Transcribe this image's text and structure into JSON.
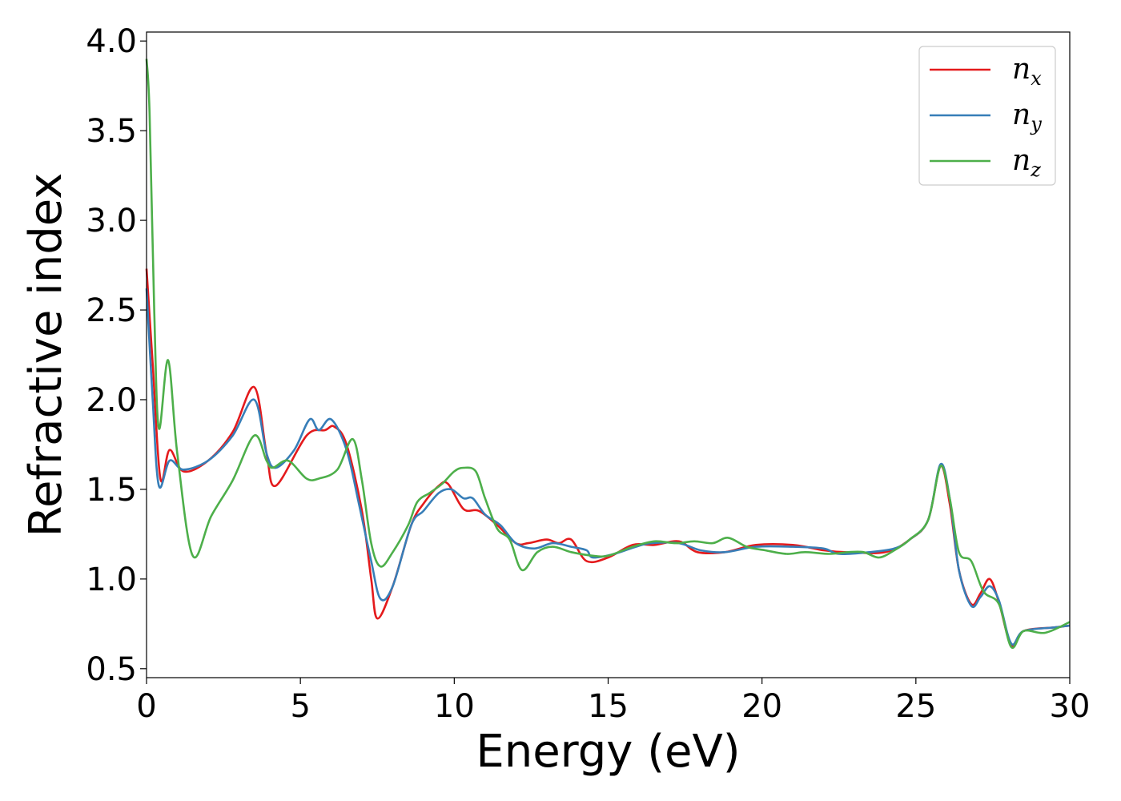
{
  "chart_data": {
    "type": "line",
    "title": "",
    "xlabel": "Energy (eV)",
    "ylabel": "Refractive index",
    "xlim": [
      0,
      30
    ],
    "ylim": [
      0.45,
      4.05
    ],
    "xticks": [
      0,
      5,
      10,
      15,
      20,
      25,
      30
    ],
    "yticks": [
      0.5,
      1.0,
      1.5,
      2.0,
      2.5,
      3.0,
      3.5,
      4.0
    ],
    "xtick_labels": [
      "0",
      "5",
      "10",
      "15",
      "20",
      "25",
      "30"
    ],
    "ytick_labels": [
      "0.5",
      "1.0",
      "1.5",
      "2.0",
      "2.5",
      "3.0",
      "3.5",
      "4.0"
    ],
    "grid": false,
    "legend_position": "top-right",
    "series": [
      {
        "name": "n_x",
        "legend_main": "n",
        "legend_sub": "x",
        "color": "#e41a1c",
        "points": [
          [
            0,
            2.73
          ],
          [
            0.2,
            2.2
          ],
          [
            0.45,
            1.56
          ],
          [
            0.75,
            1.72
          ],
          [
            1.2,
            1.6
          ],
          [
            2,
            1.66
          ],
          [
            2.8,
            1.82
          ],
          [
            3.5,
            2.07
          ],
          [
            3.9,
            1.7
          ],
          [
            4.2,
            1.52
          ],
          [
            5.2,
            1.8
          ],
          [
            5.8,
            1.83
          ],
          [
            6.1,
            1.85
          ],
          [
            6.5,
            1.75
          ],
          [
            7,
            1.38
          ],
          [
            7.3,
            1.0
          ],
          [
            7.5,
            0.78
          ],
          [
            8,
            0.96
          ],
          [
            8.6,
            1.3
          ],
          [
            9,
            1.42
          ],
          [
            9.5,
            1.52
          ],
          [
            9.8,
            1.53
          ],
          [
            10.3,
            1.39
          ],
          [
            10.8,
            1.38
          ],
          [
            11.4,
            1.3
          ],
          [
            12,
            1.2
          ],
          [
            12.4,
            1.2
          ],
          [
            13,
            1.22
          ],
          [
            13.4,
            1.2
          ],
          [
            13.8,
            1.22
          ],
          [
            14.3,
            1.1
          ],
          [
            15,
            1.12
          ],
          [
            15.8,
            1.19
          ],
          [
            16.5,
            1.19
          ],
          [
            17.3,
            1.21
          ],
          [
            17.9,
            1.15
          ],
          [
            18.8,
            1.15
          ],
          [
            19.8,
            1.19
          ],
          [
            21,
            1.19
          ],
          [
            22,
            1.16
          ],
          [
            22.7,
            1.15
          ],
          [
            24,
            1.15
          ],
          [
            24.8,
            1.22
          ],
          [
            25.4,
            1.33
          ],
          [
            25.8,
            1.63
          ],
          [
            26.1,
            1.42
          ],
          [
            26.4,
            1.05
          ],
          [
            26.8,
            0.86
          ],
          [
            27.1,
            0.92
          ],
          [
            27.4,
            1.0
          ],
          [
            27.7,
            0.87
          ],
          [
            28.1,
            0.63
          ],
          [
            28.5,
            0.71
          ],
          [
            29.5,
            0.73
          ],
          [
            30,
            0.74
          ]
        ]
      },
      {
        "name": "n_y",
        "legend_main": "n",
        "legend_sub": "y",
        "color": "#377eb8",
        "points": [
          [
            0,
            2.62
          ],
          [
            0.2,
            2.0
          ],
          [
            0.4,
            1.52
          ],
          [
            0.75,
            1.66
          ],
          [
            1.2,
            1.61
          ],
          [
            2,
            1.66
          ],
          [
            2.8,
            1.8
          ],
          [
            3.5,
            2.0
          ],
          [
            3.9,
            1.7
          ],
          [
            4.2,
            1.62
          ],
          [
            4.8,
            1.72
          ],
          [
            5.3,
            1.89
          ],
          [
            5.6,
            1.83
          ],
          [
            6,
            1.89
          ],
          [
            6.5,
            1.72
          ],
          [
            6.9,
            1.42
          ],
          [
            7.3,
            1.1
          ],
          [
            7.6,
            0.89
          ],
          [
            8,
            0.96
          ],
          [
            8.6,
            1.3
          ],
          [
            9,
            1.38
          ],
          [
            9.5,
            1.48
          ],
          [
            9.9,
            1.5
          ],
          [
            10.3,
            1.45
          ],
          [
            10.6,
            1.45
          ],
          [
            11,
            1.36
          ],
          [
            11.5,
            1.3
          ],
          [
            12,
            1.2
          ],
          [
            12.6,
            1.17
          ],
          [
            13.2,
            1.2
          ],
          [
            13.8,
            1.18
          ],
          [
            14.3,
            1.16
          ],
          [
            14.5,
            1.12
          ],
          [
            15.2,
            1.14
          ],
          [
            15.9,
            1.18
          ],
          [
            16.4,
            1.2
          ],
          [
            17.3,
            1.2
          ],
          [
            18,
            1.16
          ],
          [
            18.8,
            1.15
          ],
          [
            19.8,
            1.18
          ],
          [
            21,
            1.18
          ],
          [
            22,
            1.17
          ],
          [
            22.5,
            1.14
          ],
          [
            23.5,
            1.15
          ],
          [
            24.3,
            1.17
          ],
          [
            24.8,
            1.22
          ],
          [
            25.4,
            1.33
          ],
          [
            25.8,
            1.64
          ],
          [
            26.1,
            1.45
          ],
          [
            26.4,
            1.05
          ],
          [
            26.8,
            0.85
          ],
          [
            27.1,
            0.9
          ],
          [
            27.4,
            0.96
          ],
          [
            27.7,
            0.88
          ],
          [
            28.1,
            0.64
          ],
          [
            28.5,
            0.71
          ],
          [
            29.5,
            0.73
          ],
          [
            30,
            0.74
          ]
        ]
      },
      {
        "name": "n_z",
        "legend_main": "n",
        "legend_sub": "z",
        "color": "#4daf4a",
        "points": [
          [
            0,
            3.9
          ],
          [
            0.1,
            3.6
          ],
          [
            0.25,
            2.5
          ],
          [
            0.4,
            1.84
          ],
          [
            0.7,
            2.22
          ],
          [
            1,
            1.7
          ],
          [
            1.5,
            1.13
          ],
          [
            2.1,
            1.35
          ],
          [
            2.8,
            1.55
          ],
          [
            3.5,
            1.8
          ],
          [
            3.9,
            1.66
          ],
          [
            4.1,
            1.62
          ],
          [
            4.6,
            1.66
          ],
          [
            5.2,
            1.56
          ],
          [
            5.6,
            1.56
          ],
          [
            6.2,
            1.61
          ],
          [
            6.7,
            1.78
          ],
          [
            7,
            1.55
          ],
          [
            7.3,
            1.2
          ],
          [
            7.6,
            1.07
          ],
          [
            8,
            1.15
          ],
          [
            8.5,
            1.3
          ],
          [
            8.8,
            1.43
          ],
          [
            9.2,
            1.48
          ],
          [
            9.6,
            1.53
          ],
          [
            10,
            1.6
          ],
          [
            10.3,
            1.62
          ],
          [
            10.7,
            1.6
          ],
          [
            11,
            1.45
          ],
          [
            11.4,
            1.28
          ],
          [
            11.8,
            1.22
          ],
          [
            12.2,
            1.05
          ],
          [
            12.7,
            1.15
          ],
          [
            13.2,
            1.18
          ],
          [
            13.8,
            1.15
          ],
          [
            14.5,
            1.13
          ],
          [
            15,
            1.13
          ],
          [
            15.8,
            1.18
          ],
          [
            16.5,
            1.21
          ],
          [
            17.2,
            1.2
          ],
          [
            17.8,
            1.21
          ],
          [
            18.4,
            1.2
          ],
          [
            18.9,
            1.23
          ],
          [
            19.5,
            1.18
          ],
          [
            20.1,
            1.16
          ],
          [
            20.8,
            1.14
          ],
          [
            21.4,
            1.15
          ],
          [
            22.2,
            1.14
          ],
          [
            22.8,
            1.15
          ],
          [
            23.3,
            1.15
          ],
          [
            23.8,
            1.12
          ],
          [
            24.3,
            1.16
          ],
          [
            24.8,
            1.22
          ],
          [
            25.4,
            1.33
          ],
          [
            25.8,
            1.63
          ],
          [
            26.1,
            1.45
          ],
          [
            26.4,
            1.15
          ],
          [
            26.8,
            1.1
          ],
          [
            27.2,
            0.93
          ],
          [
            27.7,
            0.86
          ],
          [
            28.1,
            0.62
          ],
          [
            28.5,
            0.71
          ],
          [
            29.2,
            0.7
          ],
          [
            30,
            0.76
          ]
        ]
      }
    ]
  }
}
